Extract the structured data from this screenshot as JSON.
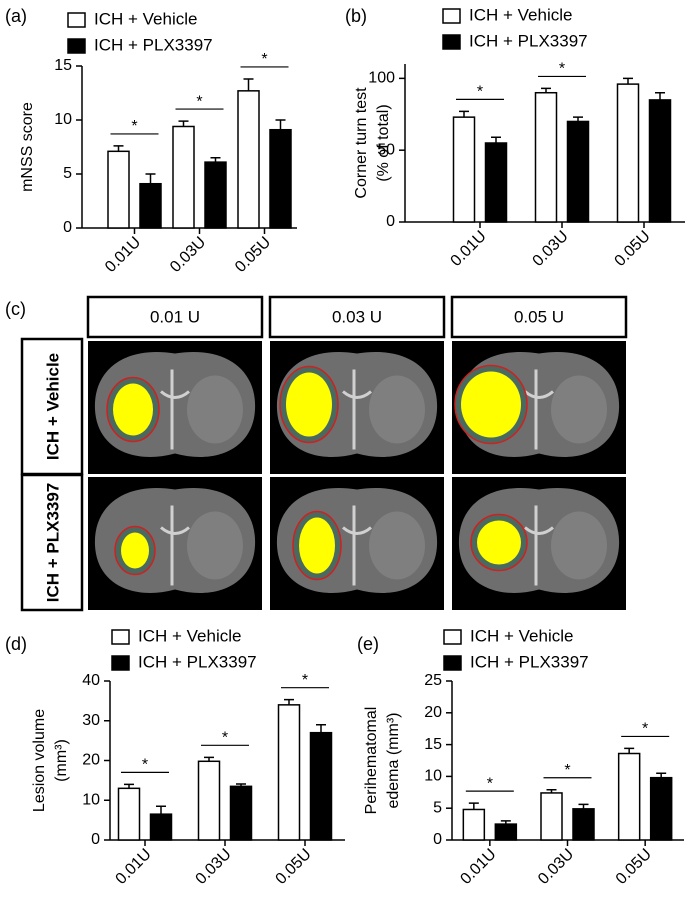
{
  "chart_data": [
    {
      "type": "bar",
      "panel_label": "(a)",
      "y_label": [
        "mNSS score"
      ],
      "categories": [
        "0.01U",
        "0.03U",
        "0.05U"
      ],
      "series": [
        {
          "name": "ICH + Vehicle",
          "color": "#ffffff",
          "values": [
            7.1,
            9.4,
            12.7
          ],
          "errors": [
            0.5,
            0.5,
            1.1
          ]
        },
        {
          "name": "ICH + PLX3397",
          "color": "#000000",
          "values": [
            4.1,
            6.1,
            9.1
          ],
          "errors": [
            0.9,
            0.4,
            0.9
          ]
        }
      ],
      "annotations": [
        "*",
        "*",
        "*"
      ],
      "ylim": [
        0,
        15
      ],
      "yticks": [
        0,
        5,
        10,
        15
      ]
    },
    {
      "type": "bar",
      "panel_label": "(b)",
      "y_label": [
        "Corner turn test",
        "(% of total)"
      ],
      "categories": [
        "0.01U",
        "0.03U",
        "0.05U"
      ],
      "series": [
        {
          "name": "ICH + Vehicle",
          "color": "#ffffff",
          "values": [
            73,
            90,
            96
          ],
          "errors": [
            4,
            3,
            4
          ]
        },
        {
          "name": "ICH + PLX3397",
          "color": "#000000",
          "values": [
            55,
            70,
            85
          ],
          "errors": [
            4,
            3,
            5
          ]
        }
      ],
      "annotations": [
        "*",
        "*",
        null
      ],
      "ylim": [
        0,
        110
      ],
      "yticks": [
        0,
        50,
        100
      ]
    },
    {
      "type": "bar",
      "panel_label": "(d)",
      "y_label": [
        "Lesion volume",
        "(mm³)"
      ],
      "categories": [
        "0.01U",
        "0.03U",
        "0.05U"
      ],
      "series": [
        {
          "name": "ICH + Vehicle",
          "color": "#ffffff",
          "values": [
            13,
            19.8,
            34
          ],
          "errors": [
            1,
            1,
            1.3
          ]
        },
        {
          "name": "ICH + PLX3397",
          "color": "#000000",
          "values": [
            6.5,
            13.5,
            27
          ],
          "errors": [
            2,
            0.6,
            2
          ]
        }
      ],
      "annotations": [
        "*",
        "*",
        "*"
      ],
      "ylim": [
        0,
        40
      ],
      "yticks": [
        0,
        10,
        20,
        30,
        40
      ]
    },
    {
      "type": "bar",
      "panel_label": "(e)",
      "y_label": [
        "Perihematomal",
        "edema (mm³)"
      ],
      "categories": [
        "0.01U",
        "0.03U",
        "0.05U"
      ],
      "series": [
        {
          "name": "ICH + Vehicle",
          "color": "#ffffff",
          "values": [
            4.8,
            7.4,
            13.6
          ],
          "errors": [
            1,
            0.5,
            0.8
          ]
        },
        {
          "name": "ICH + PLX3397",
          "color": "#000000",
          "values": [
            2.5,
            4.9,
            9.8
          ],
          "errors": [
            0.5,
            0.7,
            0.7
          ]
        }
      ],
      "annotations": [
        "*",
        "*",
        "*"
      ],
      "ylim": [
        0,
        25
      ],
      "yticks": [
        0,
        5,
        10,
        15,
        20,
        25
      ]
    }
  ],
  "panel_c": {
    "panel_label": "(c)",
    "columns": [
      "0.01 U",
      "0.03 U",
      "0.05 U"
    ],
    "rows": [
      "ICH + Vehicle",
      "ICH + PLX3397"
    ]
  }
}
